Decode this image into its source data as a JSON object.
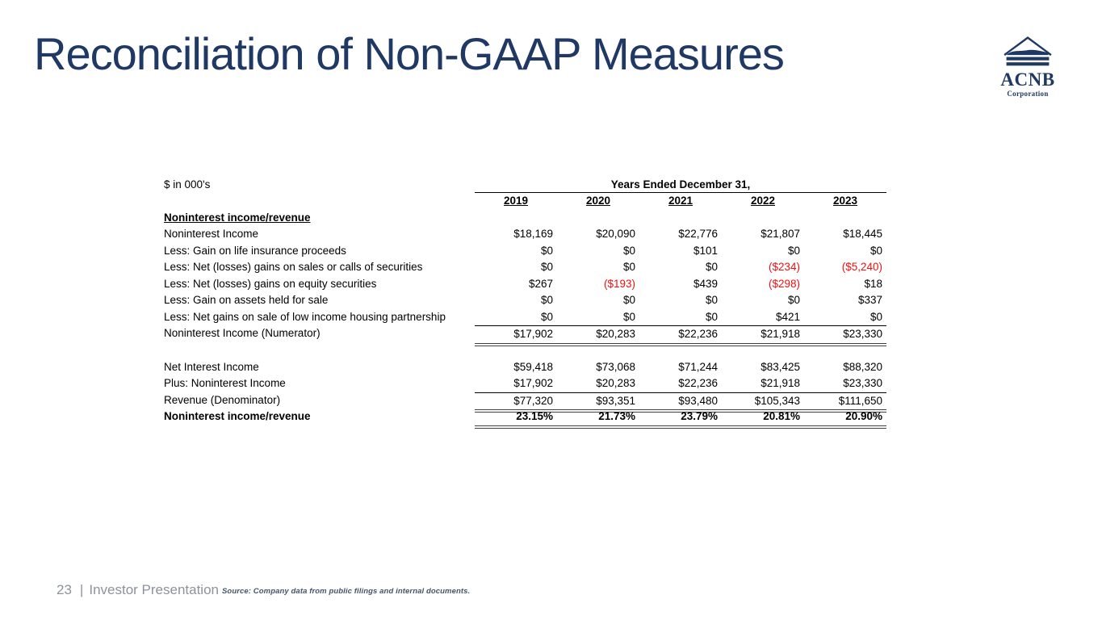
{
  "slide": {
    "title": "Reconciliation of Non-GAAP Measures",
    "title_color": "#1F3864",
    "background": "#FFFFFF"
  },
  "logo": {
    "name": "ACNB",
    "subtitle": "Corporation",
    "color": "#1F3864"
  },
  "table": {
    "units_label": "$ in 000's",
    "period_header": "Years Ended December 31,",
    "years": [
      "2019",
      "2020",
      "2021",
      "2022",
      "2023"
    ],
    "negative_color": "#EE1111",
    "rows": [
      {
        "label": "Noninterest income/revenue",
        "section": true,
        "values": [
          "",
          "",
          "",
          "",
          ""
        ]
      },
      {
        "label": "Noninterest Income",
        "values": [
          "$18,169",
          "$20,090",
          "$22,776",
          "$21,807",
          "$18,445"
        ]
      },
      {
        "label": "Less: Gain on life insurance proceeds",
        "values": [
          "$0",
          "$0",
          "$101",
          "$0",
          "$0"
        ]
      },
      {
        "label": "Less: Net (losses) gains on sales or calls of securities",
        "values": [
          "$0",
          "$0",
          "$0",
          "($234)",
          "($5,240)"
        ]
      },
      {
        "label": "Less: Net (losses) gains on equity securities",
        "values": [
          "$267",
          "($193)",
          "$439",
          "($298)",
          "$18"
        ]
      },
      {
        "label": "Less: Gain on assets held for sale",
        "values": [
          "$0",
          "$0",
          "$0",
          "$0",
          "$337"
        ]
      },
      {
        "label": "Less: Net gains on sale of low income housing partnership",
        "values": [
          "$0",
          "$0",
          "$0",
          "$421",
          "$0"
        ]
      },
      {
        "label": "Noninterest Income (Numerator)",
        "values": [
          "$17,902",
          "$20,283",
          "$22,236",
          "$21,918",
          "$23,330"
        ],
        "top": "thin",
        "bottom": "thick"
      },
      {
        "spacer": true
      },
      {
        "label": "Net Interest Income",
        "values": [
          "$59,418",
          "$73,068",
          "$71,244",
          "$83,425",
          "$88,320"
        ]
      },
      {
        "label": "Plus: Noninterest Income",
        "values": [
          "$17,902",
          "$20,283",
          "$22,236",
          "$21,918",
          "$23,330"
        ]
      },
      {
        "label": "Revenue (Denominator)",
        "values": [
          "$77,320",
          "$93,351",
          "$93,480",
          "$105,343",
          "$111,650"
        ],
        "top": "thin",
        "bottom": "thick"
      },
      {
        "label": "Noninterest income/revenue",
        "bold": true,
        "values": [
          "23.15%",
          "21.73%",
          "23.79%",
          "20.81%",
          "20.90%"
        ],
        "bottom": "thick"
      }
    ]
  },
  "footer": {
    "page_number": "23",
    "separator": "|",
    "label": "Investor Presentation",
    "source": "Source: Company data from public filings and internal documents."
  }
}
